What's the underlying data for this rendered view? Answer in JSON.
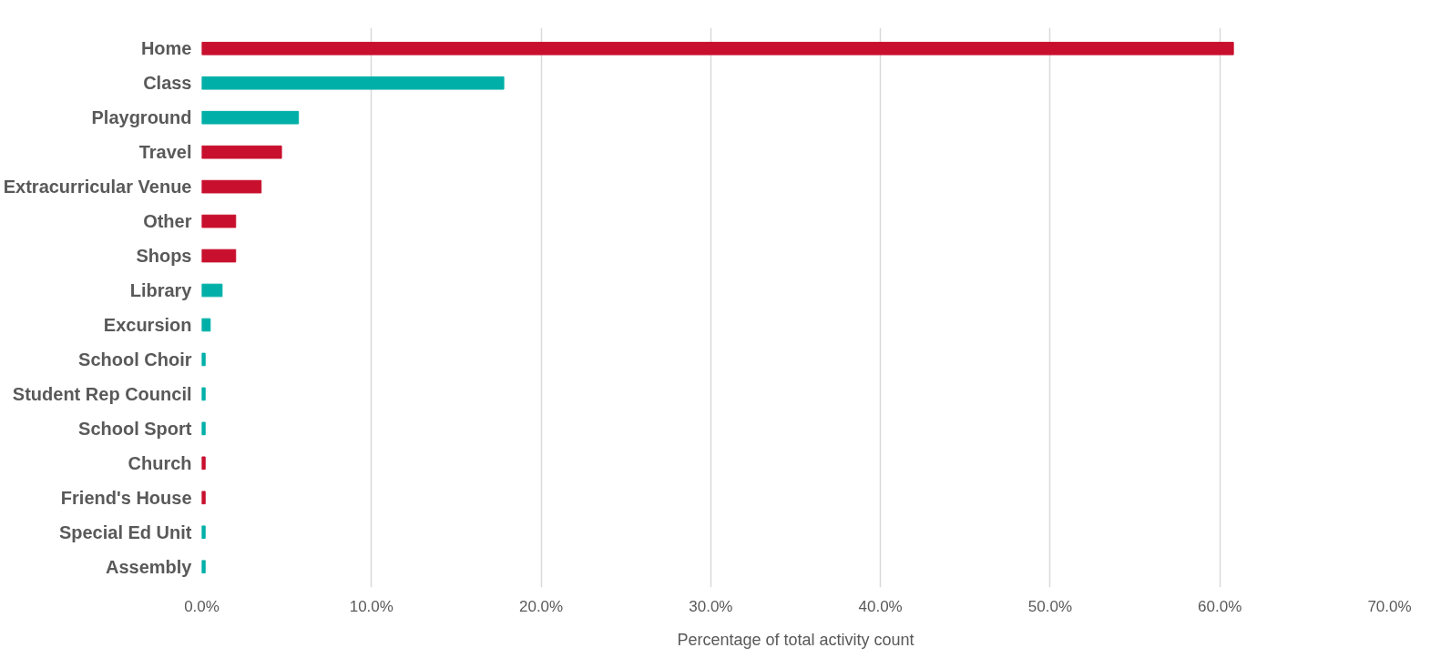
{
  "chart_data": {
    "type": "bar",
    "orientation": "horizontal",
    "categories": [
      "Home",
      "Class",
      "Playground",
      "Travel",
      "Extracurricular Venue",
      "Other",
      "Shops",
      "Library",
      "Excursion",
      "School Choir",
      "Student Rep Council",
      "School Sport",
      "Church",
      "Friend's House",
      "Special Ed Unit",
      "Assembly"
    ],
    "values": [
      60.8,
      17.8,
      5.7,
      4.7,
      3.5,
      2.0,
      2.0,
      1.2,
      0.5,
      0.2,
      0.2,
      0.2,
      0.2,
      0.2,
      0.2,
      0.2
    ],
    "colors": [
      "#c8102e",
      "#00b0a8",
      "#00b0a8",
      "#c8102e",
      "#c8102e",
      "#c8102e",
      "#c8102e",
      "#00b0a8",
      "#00b0a8",
      "#00b0a8",
      "#00b0a8",
      "#00b0a8",
      "#c8102e",
      "#c8102e",
      "#00b0a8",
      "#00b0a8"
    ],
    "xlim": [
      0,
      70
    ],
    "xticks": [
      {
        "value": 0,
        "label": "0.0%"
      },
      {
        "value": 10,
        "label": "10.0%"
      },
      {
        "value": 20,
        "label": "20.0%"
      },
      {
        "value": 30,
        "label": "30.0%"
      },
      {
        "value": 40,
        "label": "40.0%"
      },
      {
        "value": 50,
        "label": "50.0%"
      },
      {
        "value": 60,
        "label": "60.0%"
      },
      {
        "value": 70,
        "label": "70.0%"
      }
    ],
    "xlabel": "Percentage of total activity count",
    "grid": "x"
  }
}
